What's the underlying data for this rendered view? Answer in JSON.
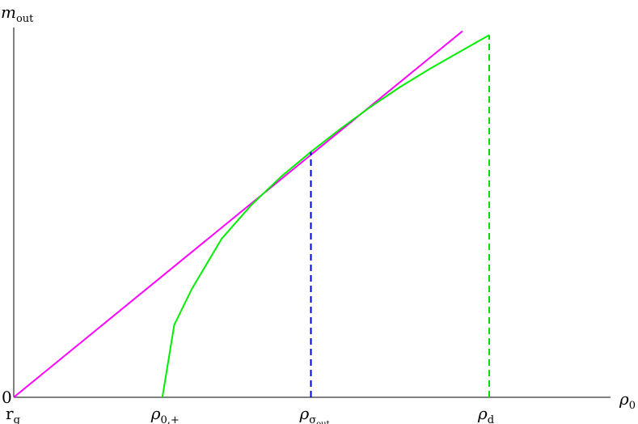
{
  "chart_data": {
    "type": "line",
    "xlabel": {
      "base": "ρ",
      "sub": "0"
    },
    "ylabel": {
      "base": "m",
      "sub": "out"
    },
    "xlim": [
      0,
      1.0
    ],
    "ylim": [
      0,
      1.0
    ],
    "y_zero_label": "0",
    "x_ticks": [
      {
        "x": 0.0,
        "base": "r",
        "sub": "g"
      },
      {
        "x": 0.25,
        "base": "ρ",
        "sub": "0,+"
      },
      {
        "x": 0.5,
        "base": "ρ",
        "sub": "σ",
        "subsub": "out"
      },
      {
        "x": 0.8,
        "base": "ρ",
        "sub": "d"
      }
    ],
    "series": [
      {
        "color": "#ff00ff",
        "style": "solid",
        "x": [
          0.0,
          0.755
        ],
        "y": [
          0.0,
          1.01
        ]
      },
      {
        "color": "#00ee00",
        "style": "solid",
        "x": [
          0.25,
          0.27,
          0.3,
          0.35,
          0.4,
          0.45,
          0.5,
          0.55,
          0.6,
          0.65,
          0.7,
          0.75,
          0.8
        ],
        "y": [
          0.0,
          0.2,
          0.3,
          0.438,
          0.531,
          0.609,
          0.677,
          0.741,
          0.801,
          0.856,
          0.906,
          0.953,
          0.999
        ]
      }
    ],
    "dashed_verticals": [
      {
        "x": 0.5,
        "y_top": 0.677,
        "color": "#0000cc"
      },
      {
        "x": 0.8,
        "y_top": 0.999,
        "color": "#00dd00"
      }
    ],
    "grid": false,
    "legend": "none"
  }
}
